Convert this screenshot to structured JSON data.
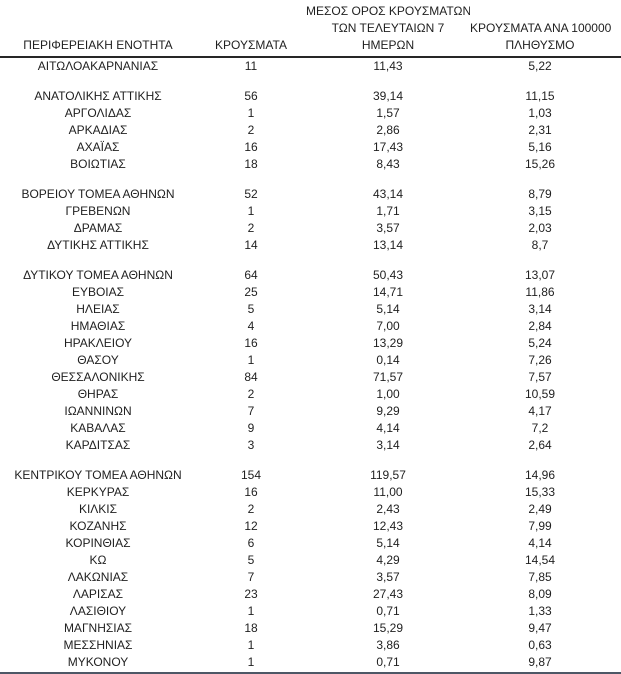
{
  "table": {
    "headers": {
      "col1": "ΠΕΡΙΦΕΡΕΙΑΚΗ ΕΝΟΤΗΤΑ",
      "col2": "ΚΡΟΥΣΜΑΤΑ",
      "col3_line1": "ΜΕΣΟΣ ΟΡΟΣ ΚΡΟΥΣΜΑΤΩΝ",
      "col3_line2": "ΤΩΝ ΤΕΛΕΥΤΑΙΩΝ 7",
      "col3_line3": "ΗΜΕΡΩΝ",
      "col4_line1": "ΚΡΟΥΣΜΑΤΑ ΑΝΑ 100000",
      "col4_line2": "ΠΛΗΘΥΣΜΟ"
    },
    "colors": {
      "text": "#1f1f1f",
      "header_rule": "#262626",
      "bottom_rule": "#4d5766",
      "background": "#ffffff"
    },
    "groups": [
      [
        {
          "region": "ΑΙΤΩΛΟΑΚΑΡΝΑΝΙΑΣ",
          "cases": "11",
          "avg7": "11,43",
          "per100k": "5,22"
        }
      ],
      [
        {
          "region": "ΑΝΑΤΟΛΙΚΗΣ ΑΤΤΙΚΗΣ",
          "cases": "56",
          "avg7": "39,14",
          "per100k": "11,15"
        },
        {
          "region": "ΑΡΓΟΛΙΔΑΣ",
          "cases": "1",
          "avg7": "1,57",
          "per100k": "1,03"
        },
        {
          "region": "ΑΡΚΑΔΙΑΣ",
          "cases": "2",
          "avg7": "2,86",
          "per100k": "2,31"
        },
        {
          "region": "ΑΧΑΪΑΣ",
          "cases": "16",
          "avg7": "17,43",
          "per100k": "5,16"
        },
        {
          "region": "ΒΟΙΩΤΙΑΣ",
          "cases": "18",
          "avg7": "8,43",
          "per100k": "15,26"
        }
      ],
      [
        {
          "region": "ΒΟΡΕΙΟΥ ΤΟΜΕΑ ΑΘΗΝΩΝ",
          "cases": "52",
          "avg7": "43,14",
          "per100k": "8,79"
        },
        {
          "region": "ΓΡΕΒΕΝΩΝ",
          "cases": "1",
          "avg7": "1,71",
          "per100k": "3,15"
        },
        {
          "region": "ΔΡΑΜΑΣ",
          "cases": "2",
          "avg7": "3,57",
          "per100k": "2,03"
        },
        {
          "region": "ΔΥΤΙΚΗΣ ΑΤΤΙΚΗΣ",
          "cases": "14",
          "avg7": "13,14",
          "per100k": "8,7"
        }
      ],
      [
        {
          "region": "ΔΥΤΙΚΟΥ ΤΟΜΕΑ ΑΘΗΝΩΝ",
          "cases": "64",
          "avg7": "50,43",
          "per100k": "13,07"
        },
        {
          "region": "ΕΥΒΟΙΑΣ",
          "cases": "25",
          "avg7": "14,71",
          "per100k": "11,86"
        },
        {
          "region": "ΗΛΕΙΑΣ",
          "cases": "5",
          "avg7": "5,14",
          "per100k": "3,14"
        },
        {
          "region": "ΗΜΑΘΙΑΣ",
          "cases": "4",
          "avg7": "7,00",
          "per100k": "2,84"
        },
        {
          "region": "ΗΡΑΚΛΕΙΟΥ",
          "cases": "16",
          "avg7": "13,29",
          "per100k": "5,24"
        },
        {
          "region": "ΘΑΣΟΥ",
          "cases": "1",
          "avg7": "0,14",
          "per100k": "7,26"
        },
        {
          "region": "ΘΕΣΣΑΛΟΝΙΚΗΣ",
          "cases": "84",
          "avg7": "71,57",
          "per100k": "7,57"
        },
        {
          "region": "ΘΗΡΑΣ",
          "cases": "2",
          "avg7": "1,00",
          "per100k": "10,59"
        },
        {
          "region": "ΙΩΑΝΝΙΝΩΝ",
          "cases": "7",
          "avg7": "9,29",
          "per100k": "4,17"
        },
        {
          "region": "ΚΑΒΑΛΑΣ",
          "cases": "9",
          "avg7": "4,14",
          "per100k": "7,2"
        },
        {
          "region": "ΚΑΡΔΙΤΣΑΣ",
          "cases": "3",
          "avg7": "3,14",
          "per100k": "2,64"
        }
      ],
      [
        {
          "region": "ΚΕΝΤΡΙΚΟΥ ΤΟΜΕΑ ΑΘΗΝΩΝ",
          "cases": "154",
          "avg7": "119,57",
          "per100k": "14,96"
        },
        {
          "region": "ΚΕΡΚΥΡΑΣ",
          "cases": "16",
          "avg7": "11,00",
          "per100k": "15,33"
        },
        {
          "region": "ΚΙΛΚΙΣ",
          "cases": "2",
          "avg7": "2,43",
          "per100k": "2,49"
        },
        {
          "region": "ΚΟΖΑΝΗΣ",
          "cases": "12",
          "avg7": "12,43",
          "per100k": "7,99"
        },
        {
          "region": "ΚΟΡΙΝΘΙΑΣ",
          "cases": "6",
          "avg7": "5,14",
          "per100k": "4,14"
        },
        {
          "region": "ΚΩ",
          "cases": "5",
          "avg7": "4,29",
          "per100k": "14,54"
        },
        {
          "region": "ΛΑΚΩΝΙΑΣ",
          "cases": "7",
          "avg7": "3,57",
          "per100k": "7,85"
        },
        {
          "region": "ΛΑΡΙΣΑΣ",
          "cases": "23",
          "avg7": "27,43",
          "per100k": "8,09"
        },
        {
          "region": "ΛΑΣΙΘΙΟΥ",
          "cases": "1",
          "avg7": "0,71",
          "per100k": "1,33"
        },
        {
          "region": "ΜΑΓΝΗΣΙΑΣ",
          "cases": "18",
          "avg7": "15,29",
          "per100k": "9,47"
        },
        {
          "region": "ΜΕΣΣΗΝΙΑΣ",
          "cases": "1",
          "avg7": "3,86",
          "per100k": "0,63"
        },
        {
          "region": "ΜΥΚΟΝΟΥ",
          "cases": "1",
          "avg7": "0,71",
          "per100k": "9,87"
        }
      ]
    ]
  }
}
